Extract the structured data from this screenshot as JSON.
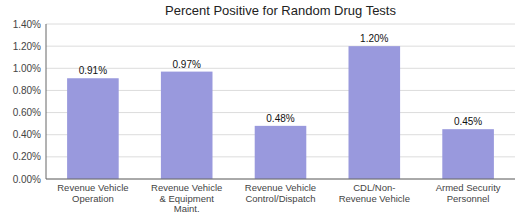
{
  "chart_data": {
    "type": "bar",
    "title": "Percent Positive for Random Drug Tests",
    "categories": [
      "Revenue Vehicle\nOperation",
      "Revenue Vehicle\n& Equipment\nMaint.",
      "Revenue Vehicle\nControl/Dispatch",
      "CDL/Non-\nRevenue Vehicle",
      "Armed Security\nPersonnel"
    ],
    "values": [
      0.91,
      0.97,
      0.48,
      1.2,
      0.45
    ],
    "value_labels": [
      "0.91%",
      "0.97%",
      "0.48%",
      "1.20%",
      "0.45%"
    ],
    "color": "#9999DD",
    "ylim": [
      0,
      1.4
    ],
    "yticks": [
      {
        "value": 0.0,
        "label": "0.00%"
      },
      {
        "value": 0.2,
        "label": "0.20%"
      },
      {
        "value": 0.4,
        "label": "0.40%"
      },
      {
        "value": 0.6,
        "label": "0.60%"
      },
      {
        "value": 0.8,
        "label": "0.80%"
      },
      {
        "value": 1.0,
        "label": "1.00%"
      },
      {
        "value": 1.2,
        "label": "1.20%"
      },
      {
        "value": 1.4,
        "label": "1.40%"
      }
    ],
    "grid": true,
    "data_labels": true
  }
}
